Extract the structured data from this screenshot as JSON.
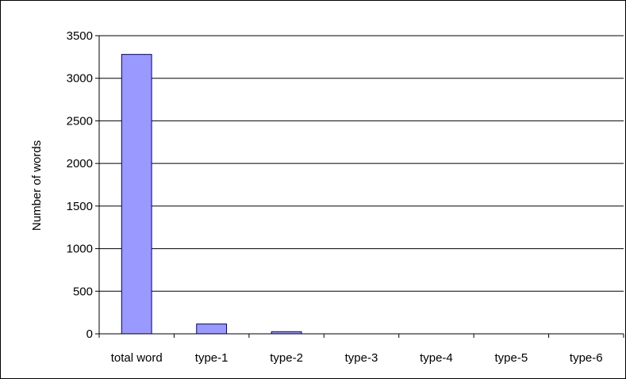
{
  "chart_data": {
    "type": "bar",
    "title": "",
    "xlabel": "",
    "ylabel": "Number of words",
    "categories": [
      "total word",
      "type-1",
      "type-2",
      "type-3",
      "type-4",
      "type-5",
      "type-6"
    ],
    "values": [
      3280,
      115,
      25,
      0,
      0,
      0,
      0
    ],
    "ylim": [
      0,
      3500
    ],
    "yticks": [
      "0",
      "500",
      "1000",
      "1500",
      "2000",
      "2500",
      "3000",
      "3500"
    ],
    "grid": true,
    "legend": "none",
    "bar_color": "#9999ff",
    "bar_edge_color": "#000080"
  }
}
